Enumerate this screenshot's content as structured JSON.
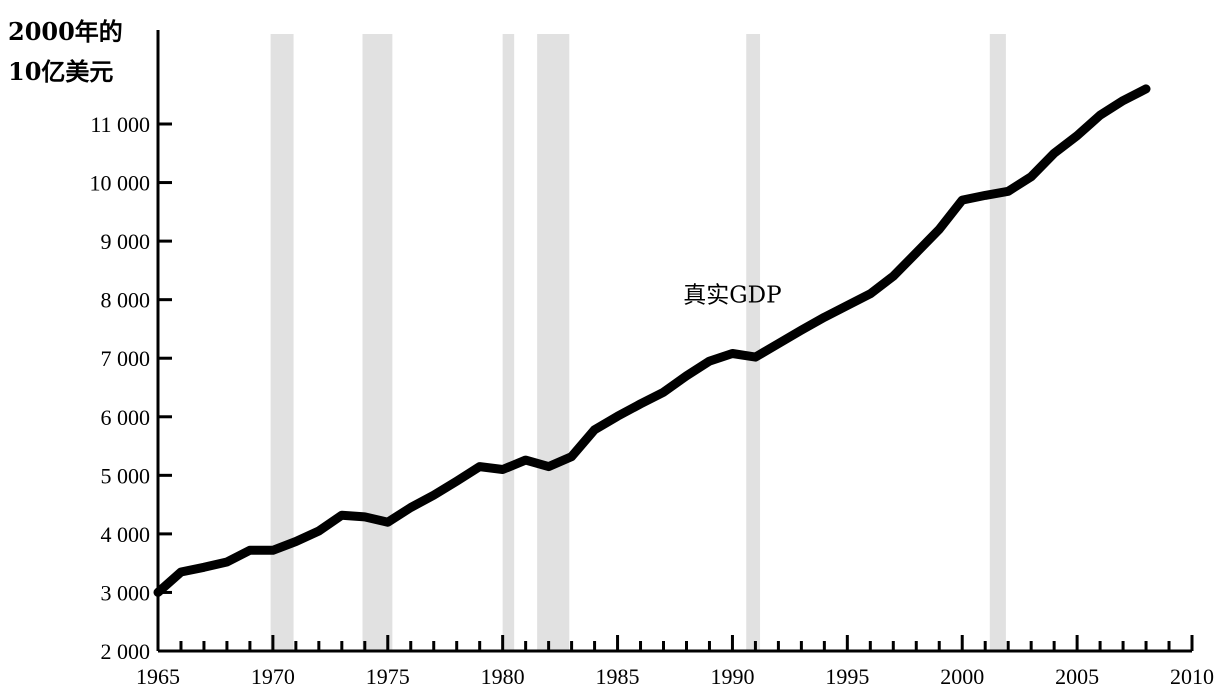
{
  "chart_data": {
    "type": "line",
    "title": "",
    "ylabel_lines": [
      "2000年的",
      "10亿美元"
    ],
    "xlabel": "",
    "xlim": [
      1965,
      2010
    ],
    "ylim": [
      2000,
      12000
    ],
    "x_ticks": [
      1965,
      1970,
      1975,
      1980,
      1985,
      1990,
      1995,
      2000,
      2005,
      2010
    ],
    "y_ticks": [
      {
        "value": 2000,
        "label": "2 000"
      },
      {
        "value": 3000,
        "label": "3 000"
      },
      {
        "value": 4000,
        "label": "4 000"
      },
      {
        "value": 5000,
        "label": "5 000"
      },
      {
        "value": 6000,
        "label": "6 000"
      },
      {
        "value": 7000,
        "label": "7 000"
      },
      {
        "value": 8000,
        "label": "8 000"
      },
      {
        "value": 9000,
        "label": "9 000"
      },
      {
        "value": 10000,
        "label": "10 000"
      },
      {
        "value": 11000,
        "label": "11 000"
      }
    ],
    "grid": false,
    "recession_bands": [
      {
        "start": 1969.9,
        "end": 1970.9
      },
      {
        "start": 1973.9,
        "end": 1975.2
      },
      {
        "start": 1980.0,
        "end": 1980.5
      },
      {
        "start": 1981.5,
        "end": 1982.9
      },
      {
        "start": 1990.6,
        "end": 1991.2
      },
      {
        "start": 2001.2,
        "end": 2001.9
      }
    ],
    "series": [
      {
        "name": "真实GDP",
        "x": [
          1965,
          1966,
          1967,
          1968,
          1969,
          1970,
          1971,
          1972,
          1973,
          1974,
          1975,
          1976,
          1977,
          1978,
          1979,
          1980,
          1981,
          1982,
          1983,
          1984,
          1985,
          1986,
          1987,
          1988,
          1989,
          1990,
          1991,
          1992,
          1993,
          1994,
          1995,
          1996,
          1997,
          1998,
          1999,
          2000,
          2001,
          2002,
          2003,
          2004,
          2005,
          2006,
          2007,
          2008
        ],
        "values": [
          3000,
          3350,
          3430,
          3520,
          3720,
          3720,
          3870,
          4050,
          4320,
          4290,
          4200,
          4450,
          4660,
          4900,
          5150,
          5100,
          5260,
          5150,
          5320,
          5780,
          6010,
          6220,
          6420,
          6700,
          6950,
          7080,
          7020,
          7250,
          7480,
          7700,
          7900,
          8100,
          8400,
          8800,
          9200,
          9700,
          9780,
          9850,
          10100,
          10500,
          10800,
          11150,
          11400,
          11600
        ]
      }
    ]
  }
}
